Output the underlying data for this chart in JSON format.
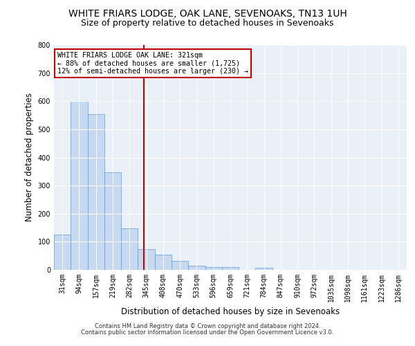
{
  "title": "WHITE FRIARS LODGE, OAK LANE, SEVENOAKS, TN13 1UH",
  "subtitle": "Size of property relative to detached houses in Sevenoaks",
  "xlabel": "Distribution of detached houses by size in Sevenoaks",
  "ylabel": "Number of detached properties",
  "footnote1": "Contains HM Land Registry data © Crown copyright and database right 2024.",
  "footnote2": "Contains public sector information licensed under the Open Government Licence v3.0.",
  "bar_labels": [
    "31sqm",
    "94sqm",
    "157sqm",
    "219sqm",
    "282sqm",
    "345sqm",
    "408sqm",
    "470sqm",
    "533sqm",
    "596sqm",
    "659sqm",
    "721sqm",
    "784sqm",
    "847sqm",
    "910sqm",
    "972sqm",
    "1035sqm",
    "1098sqm",
    "1161sqm",
    "1223sqm",
    "1286sqm"
  ],
  "bar_values": [
    125,
    600,
    553,
    347,
    148,
    75,
    55,
    32,
    15,
    10,
    10,
    0,
    8,
    0,
    0,
    0,
    0,
    0,
    0,
    0,
    0
  ],
  "bar_color": "#c6d9f0",
  "bar_edge_color": "#5b9bd5",
  "red_line_index": 4.85,
  "red_line_color": "#c00000",
  "annotation_text": "WHITE FRIARS LODGE OAK LANE: 321sqm\n← 88% of detached houses are smaller (1,725)\n12% of semi-detached houses are larger (230) →",
  "annotation_box_color": "#ffffff",
  "annotation_box_edge": "#c00000",
  "ylim": [
    0,
    800
  ],
  "yticks": [
    0,
    100,
    200,
    300,
    400,
    500,
    600,
    700,
    800
  ],
  "bg_color": "#eaf0f8",
  "grid_color": "#ffffff",
  "title_fontsize": 10,
  "subtitle_fontsize": 9,
  "axis_label_fontsize": 8.5,
  "tick_fontsize": 7,
  "footnote_fontsize": 6
}
